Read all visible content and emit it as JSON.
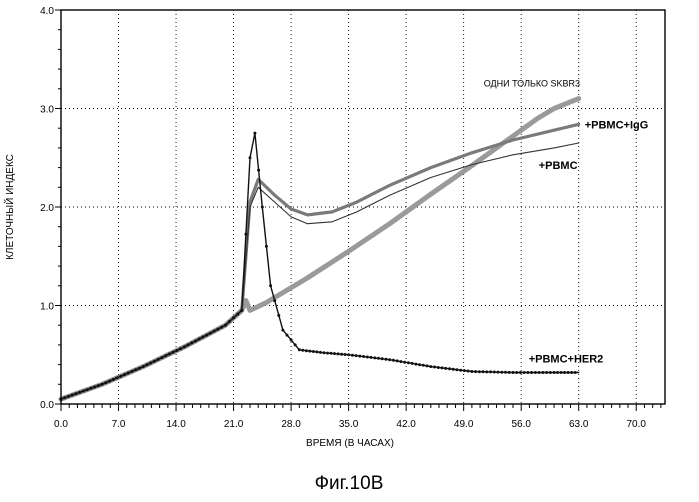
{
  "chart_data": {
    "type": "line",
    "title": "",
    "xlabel": "ВРЕМЯ (В ЧАСАХ)",
    "ylabel": "КЛЕТОЧНЫЙ ИНДЕКС",
    "xlim": [
      0,
      73.5
    ],
    "ylim": [
      0,
      4
    ],
    "x_ticks": [
      "0.0",
      "7.0",
      "14.0",
      "21.0",
      "28.0",
      "35.0",
      "42.0",
      "49.0",
      "56.0",
      "63.0",
      "70.0"
    ],
    "y_ticks": [
      "0.0",
      "1.0",
      "2.0",
      "3.0",
      "4.0"
    ],
    "grid": true,
    "series": [
      {
        "name": "ОДНИ ТОЛЬКО SKBR3",
        "color": "#9a9a9a",
        "x": [
          0,
          5,
          10,
          15,
          20,
          22,
          22.5,
          23,
          25,
          30,
          35,
          40,
          45,
          50,
          55,
          58,
          60,
          63
        ],
        "y": [
          0.05,
          0.2,
          0.38,
          0.58,
          0.8,
          0.95,
          1.05,
          0.95,
          1.03,
          1.28,
          1.55,
          1.83,
          2.13,
          2.42,
          2.72,
          2.9,
          3.0,
          3.1
        ]
      },
      {
        "name": "+PBMC+IgG",
        "color": "#7a7a7a",
        "x": [
          0,
          5,
          10,
          15,
          20,
          22,
          23,
          24,
          26,
          28,
          30,
          33,
          36,
          40,
          45,
          50,
          55,
          60,
          63
        ],
        "y": [
          0.05,
          0.2,
          0.38,
          0.58,
          0.8,
          0.95,
          2.05,
          2.28,
          2.12,
          1.98,
          1.92,
          1.95,
          2.05,
          2.22,
          2.4,
          2.55,
          2.68,
          2.78,
          2.84
        ]
      },
      {
        "name": "+PBMC",
        "color": "#333333",
        "x": [
          0,
          5,
          10,
          15,
          20,
          22,
          23,
          24,
          26,
          28,
          30,
          33,
          36,
          40,
          45,
          50,
          55,
          60,
          63
        ],
        "y": [
          0.05,
          0.2,
          0.38,
          0.58,
          0.8,
          0.95,
          2.0,
          2.2,
          2.05,
          1.9,
          1.83,
          1.85,
          1.95,
          2.12,
          2.3,
          2.43,
          2.53,
          2.6,
          2.65
        ]
      },
      {
        "name": "+PBMC+HER2",
        "color": "#111111",
        "x": [
          0,
          5,
          10,
          15,
          20,
          22,
          23,
          23.6,
          24.5,
          25.5,
          27,
          29,
          32,
          35,
          40,
          45,
          50,
          55,
          60,
          63
        ],
        "y": [
          0.05,
          0.2,
          0.38,
          0.58,
          0.8,
          0.95,
          2.5,
          2.75,
          2.0,
          1.2,
          0.75,
          0.55,
          0.52,
          0.5,
          0.45,
          0.38,
          0.33,
          0.32,
          0.32,
          0.32
        ]
      }
    ],
    "figure_caption": "Фиг.10B"
  }
}
